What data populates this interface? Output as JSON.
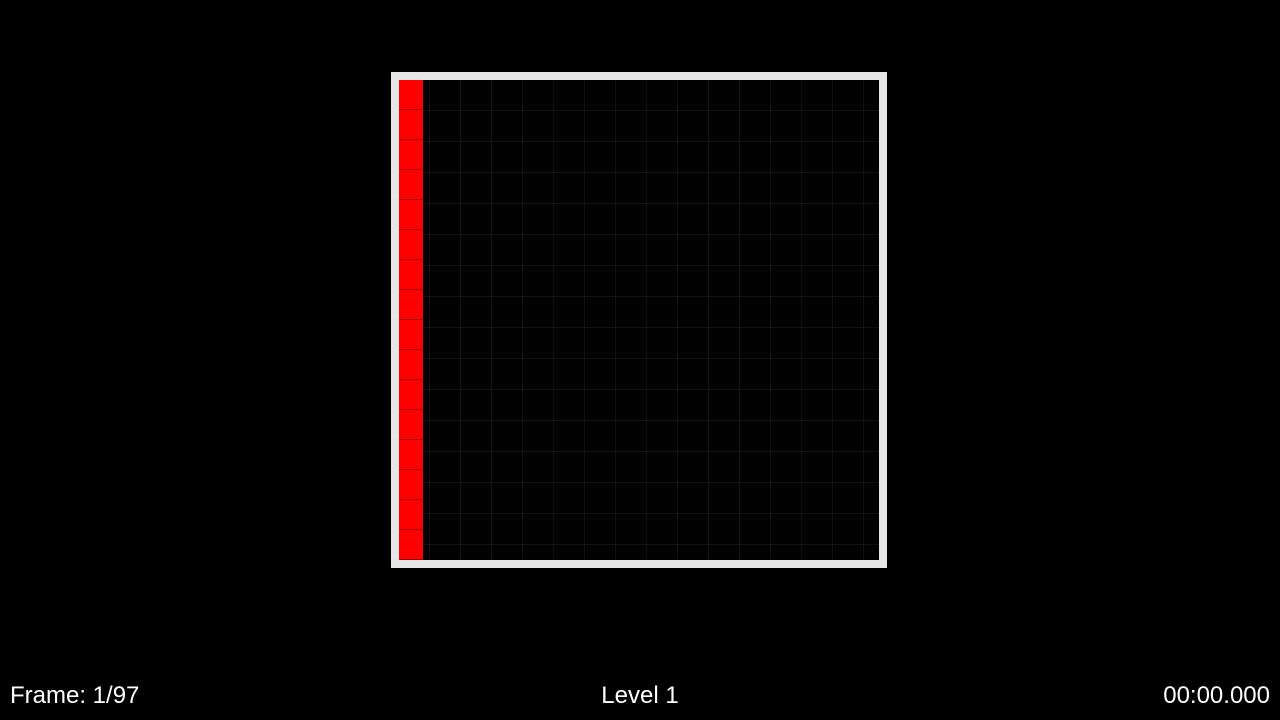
{
  "game": {
    "board": {
      "columns": 16,
      "rows": 16,
      "border_color": "#e6e6e6",
      "background_color": "#020202",
      "filled_color": "#ff0000",
      "filled_column_index": 0
    }
  },
  "hud": {
    "frame_label": "Frame: 1/97",
    "level_label": "Level 1",
    "timer": "00:00.000"
  }
}
